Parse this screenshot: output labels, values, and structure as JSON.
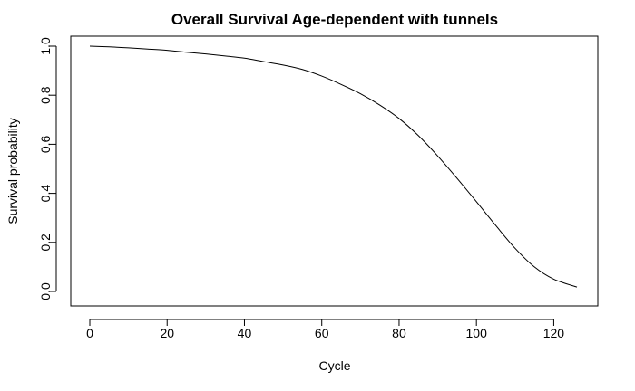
{
  "chart_data": {
    "type": "line",
    "title": "Overall Survival Age-dependent with tunnels",
    "xlabel": "Cycle",
    "ylabel": "Survival probability",
    "xlim": [
      0,
      126
    ],
    "ylim": [
      0,
      1
    ],
    "x_ticks": [
      "0",
      "20",
      "40",
      "60",
      "80",
      "100",
      "120"
    ],
    "y_ticks": [
      "0.0",
      "0.2",
      "0.4",
      "0.6",
      "0.8",
      "1.0"
    ],
    "grid": false,
    "legend": "none",
    "line_color": "#000000",
    "series": [
      {
        "x": [
          0,
          5,
          10,
          15,
          20,
          25,
          30,
          35,
          40,
          45,
          50,
          55,
          60,
          65,
          70,
          75,
          80,
          85,
          90,
          95,
          100,
          105,
          110,
          115,
          120,
          126
        ],
        "y": [
          1.0,
          0.997,
          0.993,
          0.988,
          0.983,
          0.975,
          0.968,
          0.96,
          0.951,
          0.937,
          0.923,
          0.905,
          0.878,
          0.844,
          0.806,
          0.76,
          0.705,
          0.635,
          0.552,
          0.461,
          0.366,
          0.269,
          0.176,
          0.1,
          0.05,
          0.018
        ]
      }
    ]
  }
}
